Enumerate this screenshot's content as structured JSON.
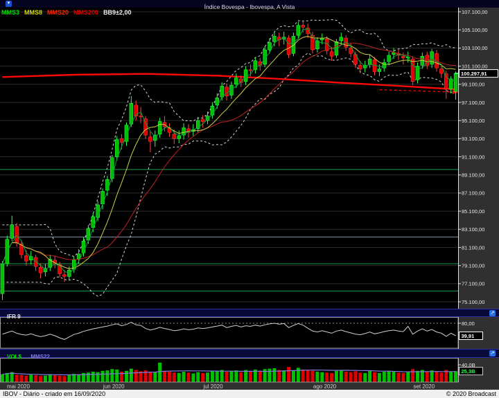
{
  "title_bar": {
    "title": "Índice Bovespa - Ibovespa, A Vista"
  },
  "legend": {
    "items": [
      {
        "label": "MMS3",
        "color": "#00e000"
      },
      {
        "label": "MMS8",
        "color": "#d9d900"
      },
      {
        "label": "MMS20",
        "color": "#ff2a00"
      },
      {
        "label": "MMS200",
        "color": "#e00000"
      },
      {
        "label": "BB9±2,00",
        "color": "#f0f0f0"
      }
    ]
  },
  "panels": {
    "ifr": {
      "title": "IFR 9",
      "ref_label": "80,00",
      "ref_value": 80,
      "current_label": "39,91",
      "current_value": 39.91
    },
    "vol": {
      "title_vol": "VOL$",
      "title_ma": "MMS22",
      "ref_label": "40,0B",
      "ref_value": 40,
      "current_label": "25,3B",
      "current_value": 25.3
    }
  },
  "price_axis": {
    "current": {
      "label": "100.297,91",
      "value": 100297.91
    },
    "ticks": [
      {
        "value": 107100,
        "label": "107.100,00"
      },
      {
        "value": 105100,
        "label": "105.100,00"
      },
      {
        "value": 103100,
        "label": "103.100,00"
      },
      {
        "value": 101100,
        "label": "101.100,00"
      },
      {
        "value": 99100,
        "label": "99.100,00"
      },
      {
        "value": 97100,
        "label": "97.100,00"
      },
      {
        "value": 95100,
        "label": "95.100,00"
      },
      {
        "value": 93100,
        "label": "93.100,00"
      },
      {
        "value": 91100,
        "label": "91.100,00"
      },
      {
        "value": 89100,
        "label": "89.100,00"
      },
      {
        "value": 87100,
        "label": "87.100,00"
      },
      {
        "value": 85100,
        "label": "85.100,00"
      },
      {
        "value": 83100,
        "label": "83.100,00"
      },
      {
        "value": 81100,
        "label": "81.100,00"
      },
      {
        "value": 79100,
        "label": "79.100,00"
      },
      {
        "value": 77100,
        "label": "77.100,00"
      },
      {
        "value": 75100,
        "label": "75.100,00"
      }
    ]
  },
  "x_axis": {
    "months": [
      {
        "label": "mai 2020",
        "index": 0
      },
      {
        "label": "jun 2020",
        "index": 22
      },
      {
        "label": "jul 2020",
        "index": 43
      },
      {
        "label": "ago 2020",
        "index": 66
      },
      {
        "label": "set 2020",
        "index": 87
      }
    ]
  },
  "status_bar": {
    "left": "IBOV - Diário - criado em 16/09/2020",
    "right": "© 2020 Broadcast"
  },
  "colors": {
    "background": "#303030",
    "plot_bg": "#000000",
    "up": "#00c000",
    "up_edge": "#35ff55",
    "down": "#e00000",
    "down_edge": "#ff4545",
    "grid": "#2b2b2b",
    "axis_text": "#e8e8e8",
    "axis_line": "#dddddd",
    "mms3": "#00a838",
    "mms8": "#cfcf45",
    "mms20": "#c22222",
    "mms200": "#ff0808",
    "bollinger": "#d8d8d8",
    "ifr_line": "#d0d0d0",
    "ifr_ref": "#909090",
    "vol_ma": "#837ae0",
    "sr_green": "#1fa050",
    "sr_slate": "#8494b4",
    "flag_border": "#ffffff",
    "month_text": "#d0d0d0",
    "frame": "#999999"
  },
  "chart_data": {
    "type": "candlestick",
    "symbol": "IBOV",
    "periodicity": "Diário",
    "candles": [
      [
        76000,
        79600,
        75300,
        79300
      ],
      [
        79300,
        82400,
        79000,
        82000
      ],
      [
        82100,
        84600,
        81800,
        83600
      ],
      [
        83400,
        83800,
        81200,
        81600
      ],
      [
        81500,
        81900,
        79900,
        80300
      ],
      [
        80200,
        80800,
        79100,
        79600
      ],
      [
        79700,
        80700,
        79200,
        80100
      ],
      [
        80000,
        80300,
        78500,
        79000
      ],
      [
        78900,
        79300,
        77700,
        78300
      ],
      [
        78400,
        79300,
        77900,
        78800
      ],
      [
        78900,
        80300,
        78500,
        79800
      ],
      [
        79700,
        80200,
        78800,
        79300
      ],
      [
        79200,
        79500,
        77800,
        78200
      ],
      [
        78100,
        78600,
        77300,
        77900
      ],
      [
        77900,
        79000,
        77500,
        78600
      ],
      [
        78700,
        80100,
        78300,
        79700
      ],
      [
        79800,
        80900,
        79300,
        80400
      ],
      [
        80500,
        82200,
        80100,
        81800
      ],
      [
        81900,
        83600,
        81500,
        83200
      ],
      [
        83300,
        84900,
        82800,
        84500
      ],
      [
        84400,
        86200,
        84000,
        85800
      ],
      [
        85900,
        87600,
        85300,
        87300
      ],
      [
        87400,
        89000,
        86800,
        88600
      ],
      [
        88700,
        91300,
        88300,
        91000
      ],
      [
        91100,
        93400,
        90700,
        93000
      ],
      [
        93100,
        93600,
        91900,
        92700
      ],
      [
        92800,
        94900,
        92300,
        94600
      ],
      [
        94700,
        97800,
        94400,
        97000
      ],
      [
        96800,
        97300,
        95100,
        95600
      ],
      [
        95600,
        96600,
        94800,
        95500
      ],
      [
        95300,
        95600,
        93100,
        93500
      ],
      [
        93300,
        93900,
        91600,
        92800
      ],
      [
        92900,
        94000,
        92200,
        93500
      ],
      [
        93600,
        95400,
        93200,
        95000
      ],
      [
        94900,
        95600,
        93900,
        94400
      ],
      [
        94300,
        94800,
        93300,
        93800
      ],
      [
        93600,
        94100,
        92500,
        93100
      ],
      [
        93100,
        94000,
        92600,
        93400
      ],
      [
        93500,
        94800,
        93000,
        94300
      ],
      [
        94200,
        94700,
        93200,
        93800
      ],
      [
        93900,
        94700,
        93400,
        94100
      ],
      [
        94200,
        95500,
        93800,
        95100
      ],
      [
        95200,
        95700,
        94300,
        95000
      ],
      [
        95100,
        96100,
        94700,
        95600
      ],
      [
        95700,
        97100,
        95300,
        96700
      ],
      [
        96800,
        98100,
        96400,
        97600
      ],
      [
        97700,
        99300,
        97300,
        98900
      ],
      [
        98800,
        99200,
        97300,
        97800
      ],
      [
        97900,
        99400,
        97500,
        99000
      ],
      [
        99100,
        100300,
        98700,
        99800
      ],
      [
        99700,
        100100,
        98800,
        99300
      ],
      [
        99400,
        101100,
        99000,
        100700
      ],
      [
        100700,
        101300,
        100000,
        100600
      ],
      [
        100700,
        102100,
        100300,
        101700
      ],
      [
        101600,
        102000,
        100600,
        101200
      ],
      [
        101300,
        103300,
        101000,
        102900
      ],
      [
        102900,
        104200,
        102500,
        103700
      ],
      [
        103800,
        104900,
        103300,
        104400
      ],
      [
        104300,
        104800,
        103300,
        104000
      ],
      [
        104100,
        104900,
        103500,
        104300
      ],
      [
        104200,
        104500,
        102000,
        102400
      ],
      [
        102500,
        104800,
        102200,
        104400
      ],
      [
        104500,
        106000,
        104100,
        105600
      ],
      [
        105600,
        106100,
        104800,
        105400
      ],
      [
        105300,
        105800,
        104200,
        104700
      ],
      [
        104500,
        104900,
        102500,
        102900
      ],
      [
        103000,
        104300,
        102600,
        103900
      ],
      [
        104000,
        104700,
        103500,
        104200
      ],
      [
        104100,
        104400,
        102400,
        102800
      ],
      [
        102700,
        103200,
        101700,
        102200
      ],
      [
        102300,
        104100,
        102000,
        103800
      ],
      [
        103900,
        104800,
        103400,
        104300
      ],
      [
        104200,
        104500,
        102800,
        103200
      ],
      [
        103100,
        103600,
        102100,
        102500
      ],
      [
        102400,
        102700,
        100900,
        101300
      ],
      [
        101200,
        101700,
        100300,
        100800
      ],
      [
        100900,
        101700,
        100400,
        101200
      ],
      [
        101300,
        102400,
        100900,
        101900
      ],
      [
        101800,
        102100,
        100100,
        100500
      ],
      [
        100500,
        101300,
        100000,
        100800
      ],
      [
        100900,
        101900,
        100500,
        101500
      ],
      [
        101600,
        102700,
        101200,
        102300
      ],
      [
        102400,
        103100,
        101900,
        102600
      ],
      [
        102500,
        102900,
        101800,
        102300
      ],
      [
        102200,
        102600,
        101300,
        102000
      ],
      [
        102000,
        102700,
        101500,
        102100
      ],
      [
        101900,
        102200,
        99000,
        99400
      ],
      [
        99600,
        101500,
        99200,
        101100
      ],
      [
        101200,
        102600,
        100800,
        102200
      ],
      [
        102300,
        102700,
        100800,
        101200
      ],
      [
        101300,
        103000,
        100900,
        102700
      ],
      [
        102500,
        102900,
        100500,
        100900
      ],
      [
        100800,
        101300,
        99800,
        100300
      ],
      [
        100300,
        100600,
        97500,
        98600
      ],
      [
        98600,
        100000,
        98100,
        99700
      ],
      [
        98300,
        100500,
        97400,
        100298
      ]
    ],
    "volumes_billion": [
      18,
      21,
      23,
      17,
      16,
      15,
      17,
      16,
      14,
      15,
      18,
      16,
      15,
      14,
      16,
      19,
      18,
      21,
      22,
      24,
      23,
      26,
      27,
      30,
      29,
      24,
      26,
      31,
      28,
      25,
      27,
      24,
      23,
      45,
      26,
      24,
      22,
      21,
      24,
      22,
      20,
      23,
      21,
      22,
      25,
      26,
      28,
      24,
      26,
      27,
      23,
      28,
      25,
      29,
      26,
      30,
      31,
      32,
      28,
      27,
      35,
      27,
      33,
      29,
      28,
      26,
      24,
      23,
      22,
      21,
      26,
      27,
      24,
      23,
      25,
      22,
      21,
      26,
      23,
      21,
      24,
      26,
      25,
      22,
      21,
      23,
      30,
      26,
      28,
      24,
      27,
      25,
      22,
      28,
      24,
      25.3
    ],
    "ifr9": [
      45,
      50,
      55,
      48,
      44,
      42,
      46,
      41,
      37,
      40,
      45,
      40,
      33,
      28,
      36,
      44,
      48,
      54,
      58,
      62,
      65,
      68,
      71,
      75,
      78,
      72,
      76,
      83,
      75,
      73,
      63,
      58,
      62,
      67,
      63,
      60,
      56,
      58,
      62,
      59,
      61,
      65,
      63,
      65,
      68,
      71,
      74,
      66,
      70,
      73,
      68,
      72,
      70,
      74,
      71,
      75,
      78,
      80,
      77,
      79,
      66,
      73,
      79,
      74,
      64,
      55,
      52,
      56,
      52,
      48,
      55,
      58,
      53,
      49,
      45,
      43,
      47,
      52,
      46,
      49,
      53,
      56,
      58,
      55,
      53,
      70,
      45,
      55,
      62,
      55,
      60,
      52,
      48,
      38,
      48,
      39.91
    ],
    "mms200_waypoints": [
      [
        0,
        99900
      ],
      [
        15,
        100150
      ],
      [
        30,
        100250
      ],
      [
        45,
        100050
      ],
      [
        58,
        99700
      ],
      [
        70,
        99300
      ],
      [
        82,
        98950
      ],
      [
        95,
        98550
      ]
    ],
    "mms200_dashed": [
      [
        79,
        98500
      ],
      [
        95.5,
        98230
      ]
    ],
    "support_resistance": [
      {
        "price": 89700,
        "style": "green"
      },
      {
        "price": 82250,
        "style": "slate"
      },
      {
        "price": 79300,
        "style": "green"
      },
      {
        "price": 76300,
        "style": "green"
      }
    ],
    "indicators": {
      "mms_periods": [
        3,
        8,
        20,
        200
      ],
      "bollinger": {
        "period": 9,
        "mult": 2
      },
      "ifr_period": 9,
      "vol_ma_period": 22
    }
  }
}
